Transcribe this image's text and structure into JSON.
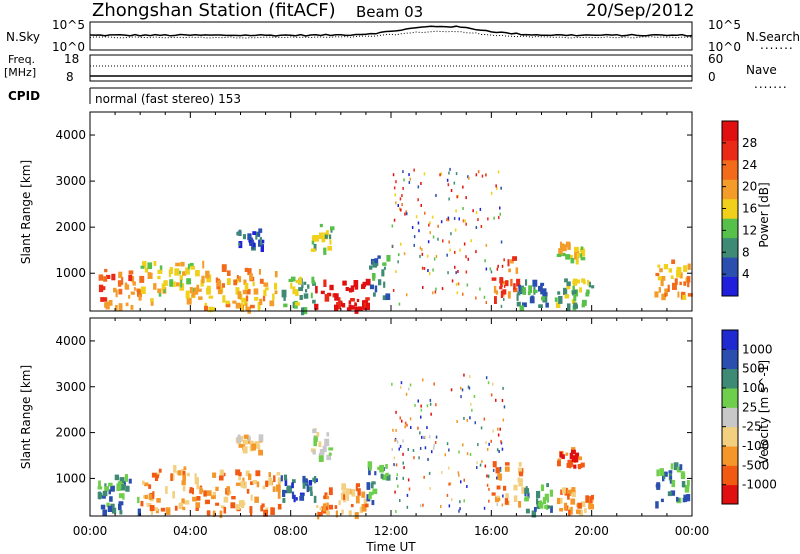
{
  "header": {
    "station": "Zhongshan Station (fitACF)",
    "beam": "Beam 03",
    "date": "20/Sep/2012"
  },
  "left_labels": {
    "nsky": "N.Sky",
    "nsky_tick_top": "10^5",
    "nsky_tick_bottom": "10^0",
    "freq": "Freq.",
    "freq_unit": "[MHz]",
    "freq_tick_top": "18",
    "freq_tick_bottom": "8",
    "cpid": "CPID",
    "cpid_value": "normal (fast stereo) 153"
  },
  "right_labels": {
    "nsearch": "N.Search",
    "nsearch_tick_top": "10^5",
    "nsearch_tick_bottom": "10^0",
    "nave": "Nave",
    "nave_tick_top": "60",
    "nave_tick_bottom": "0",
    "dots": "......."
  },
  "colors": {
    "power_scale": [
      "#1f1fdc",
      "#2b4fae",
      "#3f8a74",
      "#57c04a",
      "#f0d01a",
      "#f49c2a",
      "#f26a1a",
      "#ea2a16",
      "#e01010"
    ],
    "velocity_scale": [
      "#e01010",
      "#f25a14",
      "#f4962a",
      "#f3d080",
      "#c8c8c8",
      "#6fce4c",
      "#3f8a74",
      "#2b4fae",
      "#1f2ad0"
    ]
  },
  "chart_data": [
    {
      "type": "heatmap",
      "panel": "power",
      "xlabel": "",
      "ylabel": "Slant Range [km]",
      "ylim": [
        180,
        4500
      ],
      "yticks": [
        "1000",
        "2000",
        "3000",
        "4000"
      ],
      "colorbar_label": "Power [dB]",
      "colorbar_ticks": [
        "4",
        "8",
        "12",
        "16",
        "20",
        "24",
        "28"
      ],
      "regions": [
        {
          "t0": 0.3,
          "t1": 2.0,
          "r0": 300,
          "r1": 1100,
          "level": 6
        },
        {
          "t0": 2.0,
          "t1": 4.5,
          "r0": 450,
          "r1": 1300,
          "level": 4
        },
        {
          "t0": 4.5,
          "t1": 7.5,
          "r0": 250,
          "r1": 1200,
          "level": 5
        },
        {
          "t0": 7.6,
          "t1": 8.9,
          "r0": 250,
          "r1": 1000,
          "level": 3
        },
        {
          "t0": 8.9,
          "t1": 11.0,
          "r0": 250,
          "r1": 900,
          "level": 8
        },
        {
          "t0": 11.0,
          "t1": 11.9,
          "r0": 500,
          "r1": 1400,
          "level": 2
        },
        {
          "t0": 16.0,
          "t1": 17.0,
          "r0": 500,
          "r1": 1400,
          "level": 6
        },
        {
          "t0": 17.0,
          "t1": 18.2,
          "r0": 300,
          "r1": 900,
          "level": 2
        },
        {
          "t0": 18.5,
          "t1": 20.0,
          "r0": 300,
          "r1": 900,
          "level": 3
        },
        {
          "t0": 22.5,
          "t1": 24.0,
          "r0": 500,
          "r1": 1300,
          "level": 5
        },
        {
          "t0": 8.8,
          "t1": 9.6,
          "r0": 1500,
          "r1": 2100,
          "level": 3
        },
        {
          "t0": 5.8,
          "t1": 6.8,
          "r0": 1600,
          "r1": 2000,
          "level": 1
        },
        {
          "t0": 18.6,
          "t1": 19.6,
          "r0": 1300,
          "r1": 1700,
          "level": 4
        }
      ]
    },
    {
      "type": "heatmap",
      "panel": "velocity",
      "xlabel": "Time UT",
      "ylabel": "Slant Range [km]",
      "ylim": [
        180,
        4500
      ],
      "yticks": [
        "1000",
        "2000",
        "3000",
        "4000"
      ],
      "xticks": [
        "00:00",
        "04:00",
        "08:00",
        "12:00",
        "16:00",
        "20:00",
        "00:00"
      ],
      "colorbar_label": "Velocity [m s^-1]",
      "colorbar_ticks": [
        "1000",
        "500",
        "100",
        "25",
        "-25",
        "-100",
        "-500",
        "-1000"
      ],
      "regions": [
        {
          "t0": 0.3,
          "t1": 2.0,
          "r0": 300,
          "r1": 1100,
          "level": 6
        },
        {
          "t0": 2.0,
          "t1": 4.5,
          "r0": 300,
          "r1": 1300,
          "level": 2
        },
        {
          "t0": 4.5,
          "t1": 7.5,
          "r0": 250,
          "r1": 1200,
          "level": 2
        },
        {
          "t0": 7.6,
          "t1": 9.0,
          "r0": 500,
          "r1": 1100,
          "level": 7
        },
        {
          "t0": 9.0,
          "t1": 11.0,
          "r0": 250,
          "r1": 900,
          "level": 2
        },
        {
          "t0": 11.0,
          "t1": 11.9,
          "r0": 500,
          "r1": 1400,
          "level": 6
        },
        {
          "t0": 16.0,
          "t1": 17.2,
          "r0": 500,
          "r1": 1400,
          "level": 2
        },
        {
          "t0": 17.2,
          "t1": 18.4,
          "r0": 300,
          "r1": 900,
          "level": 6
        },
        {
          "t0": 18.6,
          "t1": 20.0,
          "r0": 300,
          "r1": 900,
          "level": 2
        },
        {
          "t0": 22.5,
          "t1": 24.0,
          "r0": 500,
          "r1": 1400,
          "level": 6
        },
        {
          "t0": 8.8,
          "t1": 9.6,
          "r0": 1500,
          "r1": 2100,
          "level": 4
        },
        {
          "t0": 5.8,
          "t1": 6.8,
          "r0": 1600,
          "r1": 2000,
          "level": 3
        },
        {
          "t0": 18.6,
          "t1": 19.6,
          "r0": 1300,
          "r1": 1700,
          "level": 1
        }
      ]
    }
  ]
}
